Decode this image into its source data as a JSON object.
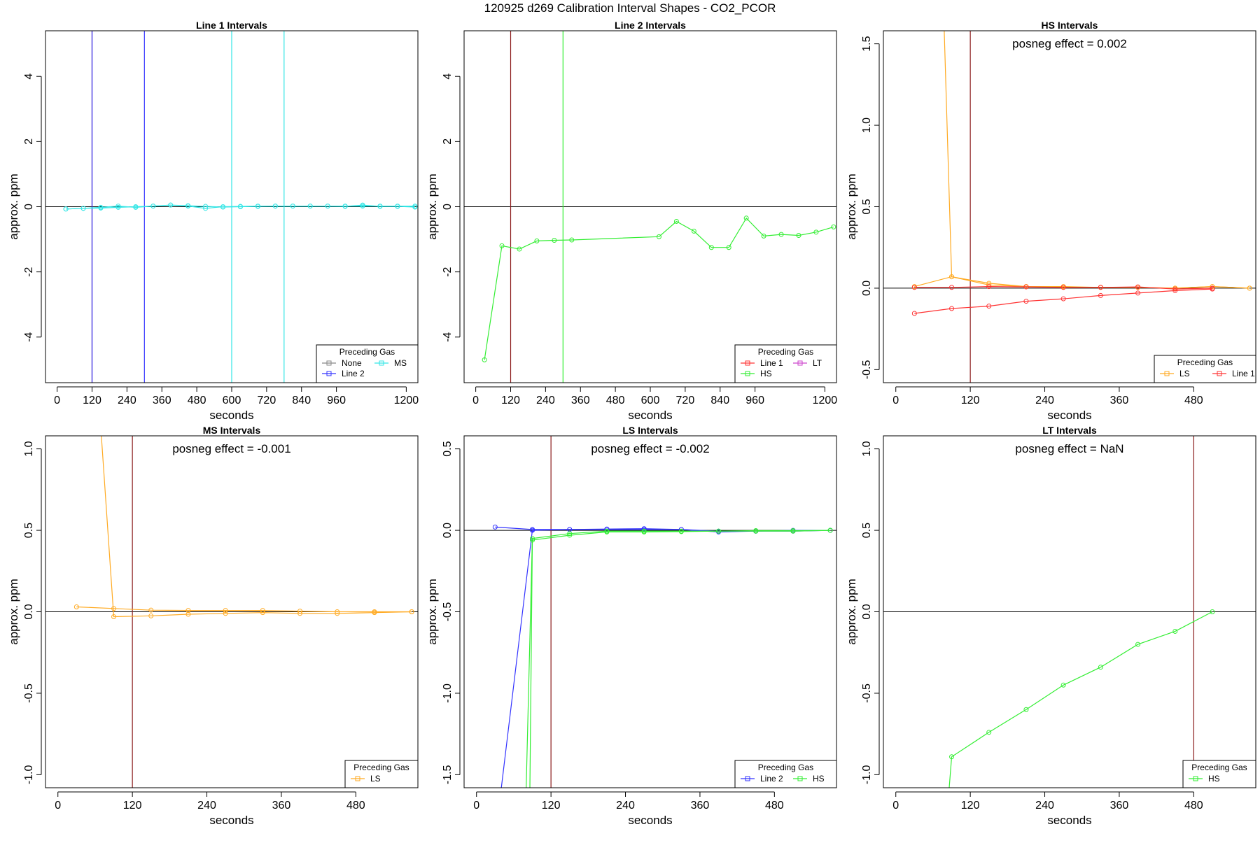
{
  "main_title": "120925  d269   Calibration Interval Shapes - CO2_PCOR",
  "colors": {
    "None": "#888888",
    "Line 1": "#ff3333",
    "Line 2": "#3333ff",
    "HS": "#33ee33",
    "LS": "#ffaa22",
    "MS": "#33e6e6",
    "LT": "#cc44cc",
    "vline_dark": "#8b1a1a",
    "zero_line": "#000000",
    "frame": "#000000"
  },
  "chart_data": [
    {
      "type": "line",
      "title": "Line 1 Intervals",
      "xlabel": "seconds",
      "ylabel": "approx. ppm",
      "xlim": [
        -40,
        1240
      ],
      "ylim": [
        -5.4,
        5.4
      ],
      "xticks": [
        0,
        120,
        240,
        360,
        480,
        600,
        720,
        840,
        960,
        1200
      ],
      "yticks": [
        -4,
        -2,
        0,
        2,
        4
      ],
      "ytick_labels": [
        "-4",
        "-2",
        "0",
        "2",
        "4"
      ],
      "annotation": "",
      "vlines": [
        {
          "x": 120,
          "color": "vline_dark"
        },
        {
          "x": 120,
          "color": "Line 2"
        },
        {
          "x": 300,
          "color": "Line 2"
        },
        {
          "x": 600,
          "color": "MS"
        },
        {
          "x": 780,
          "color": "MS"
        }
      ],
      "legend": {
        "title": "Preceding Gas",
        "position": "bottom-right",
        "columns": 2,
        "entries": [
          "None",
          "Line 2",
          "MS"
        ]
      },
      "series": [
        {
          "name": "MS",
          "color": "MS",
          "x": [
            30,
            90,
            150,
            210,
            270,
            330,
            390,
            450,
            510,
            570,
            630,
            690,
            750,
            810,
            870,
            930,
            990,
            1050,
            1110,
            1170,
            1230
          ],
          "y": [
            -0.07,
            -0.05,
            -0.04,
            -0.02,
            0.0,
            0.02,
            0.05,
            0.03,
            0.01,
            -0.01,
            0.0,
            0.01,
            0.02,
            0.02,
            0.02,
            0.02,
            0.02,
            0.02,
            0.02,
            0.02,
            0.02
          ]
        },
        {
          "name": "MS",
          "color": "MS",
          "x": [
            30,
            90,
            150,
            210,
            270,
            330,
            390,
            450,
            510,
            570,
            630,
            690,
            750,
            810,
            870,
            930,
            990,
            1050,
            1110,
            1170,
            1230
          ],
          "y": [
            -0.07,
            -0.05,
            -0.02,
            0.02,
            -0.02,
            0.02,
            0.05,
            0.02,
            -0.05,
            0.0,
            0.01,
            0.02,
            0.02,
            0.02,
            0.02,
            0.02,
            0.01,
            0.05,
            0.01,
            0.01,
            -0.01
          ]
        }
      ]
    },
    {
      "type": "line",
      "title": "Line 2 Intervals",
      "xlabel": "seconds",
      "ylabel": "approx. ppm",
      "xlim": [
        -40,
        1240
      ],
      "ylim": [
        -5.4,
        5.4
      ],
      "xticks": [
        0,
        120,
        240,
        360,
        480,
        600,
        720,
        840,
        960,
        1200
      ],
      "yticks": [
        -4,
        -2,
        0,
        2,
        4
      ],
      "ytick_labels": [
        "-4",
        "-2",
        "0",
        "2",
        "4"
      ],
      "annotation": "",
      "vlines": [
        {
          "x": 120,
          "color": "vline_dark"
        },
        {
          "x": 300,
          "color": "HS"
        }
      ],
      "legend": {
        "title": "Preceding Gas",
        "position": "bottom-right",
        "columns": 2,
        "entries": [
          "Line 1",
          "HS",
          "LT"
        ]
      },
      "series": [
        {
          "name": "HS",
          "color": "HS",
          "x": [
            30,
            90,
            150,
            210,
            270,
            330,
            630,
            690,
            750,
            810,
            870,
            930,
            990,
            1050,
            1110,
            1170,
            1230
          ],
          "y": [
            -4.7,
            -1.2,
            -1.3,
            -1.05,
            -1.03,
            -1.02,
            -0.92,
            -0.45,
            -0.75,
            -1.25,
            -1.25,
            -0.35,
            -0.9,
            -0.85,
            -0.88,
            -0.78,
            -0.62
          ]
        }
      ]
    },
    {
      "type": "line",
      "title": "HS Intervals",
      "xlabel": "seconds",
      "ylabel": "approx. ppm",
      "xlim": [
        -20,
        580
      ],
      "ylim": [
        -0.58,
        1.58
      ],
      "xticks": [
        0,
        120,
        240,
        360,
        480
      ],
      "yticks": [
        -0.5,
        0.0,
        0.5,
        1.0,
        1.5
      ],
      "ytick_labels": [
        "-0.5",
        "0.0",
        "0.5",
        "1.0",
        "1.5"
      ],
      "annotation": "posneg effect = 0.002",
      "vlines": [
        {
          "x": 120,
          "color": "vline_dark"
        }
      ],
      "legend": {
        "title": "Preceding Gas",
        "position": "bottom-right",
        "columns": 2,
        "entries": [
          "LS",
          "Line 1"
        ]
      },
      "series": [
        {
          "name": "LS",
          "color": "LS",
          "x": [
            30,
            90,
            150,
            210,
            270,
            330,
            390,
            450,
            510,
            570
          ],
          "y": [
            0.01,
            0.07,
            0.03,
            0.01,
            0.01,
            0.005,
            0.005,
            0.0,
            0.01,
            0.0
          ]
        },
        {
          "name": "LS",
          "color": "LS",
          "x": [
            78,
            90,
            150,
            210,
            270,
            330,
            390,
            450,
            510,
            570
          ],
          "y": [
            1.58,
            0.07,
            0.02,
            0.01,
            0.005,
            0.005,
            0.005,
            0.0,
            0.01,
            0.0
          ]
        },
        {
          "name": "Line 1",
          "color": "Line 1",
          "x": [
            30,
            90,
            150,
            210,
            270,
            330,
            390,
            450,
            510
          ],
          "y": [
            0.005,
            0.005,
            0.01,
            0.008,
            0.005,
            0.005,
            0.008,
            -0.005,
            0.0
          ]
        },
        {
          "name": "Line 1",
          "color": "Line 1",
          "x": [
            30,
            90,
            150,
            210,
            270,
            330,
            390,
            450,
            510
          ],
          "y": [
            -0.155,
            -0.125,
            -0.11,
            -0.08,
            -0.065,
            -0.045,
            -0.03,
            -0.015,
            -0.005
          ]
        }
      ]
    },
    {
      "type": "line",
      "title": "MS Intervals",
      "xlabel": "seconds",
      "ylabel": "approx. ppm",
      "xlim": [
        -20,
        580
      ],
      "ylim": [
        -1.08,
        1.08
      ],
      "xticks": [
        0,
        120,
        240,
        360,
        480
      ],
      "yticks": [
        -1.0,
        -0.5,
        0.0,
        0.5,
        1.0
      ],
      "ytick_labels": [
        "-1.0",
        "-0.5",
        "0.0",
        "0.5",
        "1.0"
      ],
      "annotation": "posneg effect = -0.001",
      "vlines": [
        {
          "x": 120,
          "color": "vline_dark"
        }
      ],
      "legend": {
        "title": "Preceding Gas",
        "position": "bottom-right",
        "columns": 1,
        "entries": [
          "LS"
        ]
      },
      "series": [
        {
          "name": "LS",
          "color": "LS",
          "x": [
            30,
            90,
            150,
            210,
            270,
            330,
            390,
            450,
            510,
            570
          ],
          "y": [
            0.03,
            0.02,
            0.01,
            0.008,
            0.008,
            0.008,
            0.004,
            0.0,
            0.0,
            0.0
          ]
        },
        {
          "name": "LS",
          "color": "LS",
          "x": [
            70,
            90,
            150,
            210,
            270,
            330,
            390,
            450,
            510,
            570
          ],
          "y": [
            1.08,
            -0.03,
            -0.025,
            -0.015,
            -0.01,
            -0.005,
            -0.01,
            -0.01,
            -0.005,
            0.0
          ]
        }
      ]
    },
    {
      "type": "line",
      "title": "LS Intervals",
      "xlabel": "seconds",
      "ylabel": "approx. ppm",
      "xlim": [
        -20,
        580
      ],
      "ylim": [
        -1.58,
        0.58
      ],
      "xticks": [
        0,
        120,
        240,
        360,
        480
      ],
      "yticks": [
        -1.5,
        -1.0,
        -0.5,
        0.0,
        0.5
      ],
      "ytick_labels": [
        "-1.5",
        "-1.0",
        "-0.5",
        "0.0",
        "0.5"
      ],
      "annotation": "posneg effect = -0.002",
      "vlines": [
        {
          "x": 120,
          "color": "vline_dark"
        }
      ],
      "legend": {
        "title": "Preceding Gas",
        "position": "bottom-right",
        "columns": 2,
        "entries": [
          "Line 2",
          "HS"
        ]
      },
      "series": [
        {
          "name": "Line 2",
          "color": "Line 2",
          "x": [
            30,
            90,
            150,
            210,
            270,
            330,
            390,
            450,
            510,
            570
          ],
          "y": [
            0.02,
            0.005,
            0.005,
            0.005,
            0.005,
            0.005,
            -0.005,
            -0.005,
            -0.005,
            0.0
          ]
        },
        {
          "name": "Line 2",
          "color": "Line 2",
          "x": [
            40,
            90,
            150,
            210,
            270,
            330,
            390,
            450,
            510,
            570
          ],
          "y": [
            -1.58,
            0.0,
            0.005,
            0.008,
            0.01,
            0.005,
            -0.01,
            -0.005,
            0.0,
            0.0
          ]
        },
        {
          "name": "HS",
          "color": "HS",
          "x": [
            80,
            90,
            150,
            210,
            270,
            330,
            390,
            450,
            510,
            570
          ],
          "y": [
            -1.58,
            -0.05,
            -0.02,
            -0.005,
            -0.005,
            -0.005,
            -0.005,
            -0.005,
            -0.005,
            0.0
          ]
        },
        {
          "name": "HS",
          "color": "HS",
          "x": [
            86,
            90,
            150,
            210,
            270,
            330,
            390,
            450,
            510,
            570
          ],
          "y": [
            -1.58,
            -0.06,
            -0.03,
            -0.01,
            -0.01,
            -0.008,
            -0.005,
            -0.002,
            -0.002,
            0.0
          ]
        }
      ]
    },
    {
      "type": "line",
      "title": "LT Intervals",
      "xlabel": "seconds",
      "ylabel": "approx. ppm",
      "xlim": [
        -20,
        580
      ],
      "ylim": [
        -1.08,
        1.08
      ],
      "xticks": [
        0,
        120,
        240,
        360,
        480
      ],
      "yticks": [
        -1.0,
        -0.5,
        0.0,
        0.5,
        1.0
      ],
      "ytick_labels": [
        "-1.0",
        "-0.5",
        "0.0",
        "0.5",
        "1.0"
      ],
      "annotation": "posneg effect = NaN",
      "vlines": [
        {
          "x": 480,
          "color": "vline_dark"
        }
      ],
      "legend": {
        "title": "Preceding Gas",
        "position": "bottom-right",
        "columns": 1,
        "entries": [
          "HS"
        ]
      },
      "series": [
        {
          "name": "HS",
          "color": "HS",
          "x": [
            86,
            90,
            150,
            210,
            270,
            330,
            390,
            450,
            510
          ],
          "y": [
            -1.08,
            -0.89,
            -0.74,
            -0.6,
            -0.45,
            -0.34,
            -0.2,
            -0.12,
            0.0
          ]
        }
      ]
    }
  ]
}
